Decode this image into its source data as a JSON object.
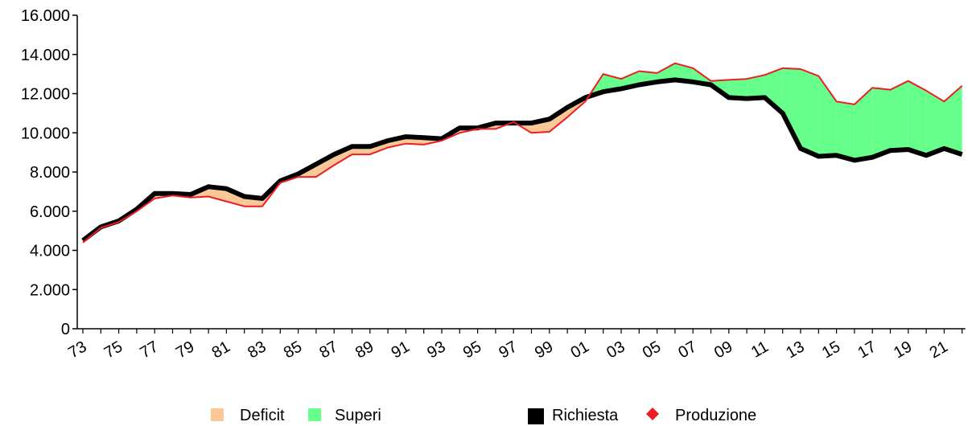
{
  "chart_data": {
    "type": "area",
    "title": "",
    "xlabel": "",
    "ylabel": "",
    "ylim": [
      0,
      16000
    ],
    "yticks": [
      0,
      2000,
      4000,
      6000,
      8000,
      10000,
      12000,
      14000,
      16000
    ],
    "ytick_labels": [
      "0",
      "2.000",
      "4.000",
      "6.000",
      "8.000",
      "10.000",
      "12.000",
      "14.000",
      "16.000"
    ],
    "xtick_labels": [
      "73",
      "75",
      "77",
      "79",
      "81",
      "83",
      "85",
      "87",
      "89",
      "91",
      "93",
      "95",
      "97",
      "99",
      "01",
      "03",
      "05",
      "07",
      "09",
      "11",
      "13",
      "15",
      "17",
      "19",
      "21"
    ],
    "grid": false,
    "legend_position": "bottom",
    "x": [
      "1973",
      "1974",
      "1975",
      "1976",
      "1977",
      "1978",
      "1979",
      "1980",
      "1981",
      "1982",
      "1983",
      "1984",
      "1985",
      "1986",
      "1987",
      "1988",
      "1989",
      "1990",
      "1991",
      "1992",
      "1993",
      "1994",
      "1995",
      "1996",
      "1997",
      "1998",
      "1999",
      "2000",
      "2001",
      "2002",
      "2003",
      "2004",
      "2005",
      "2006",
      "2007",
      "2008",
      "2009",
      "2010",
      "2011",
      "2012",
      "2013",
      "2014",
      "2015",
      "2016",
      "2017",
      "2018",
      "2019",
      "2020",
      "2021",
      "2022"
    ],
    "series": [
      {
        "name": "Richiesta",
        "color": "#000000",
        "values": [
          4500,
          5200,
          5500,
          6100,
          6900,
          6900,
          6850,
          7250,
          7150,
          6750,
          6650,
          7550,
          7900,
          8400,
          8900,
          9300,
          9300,
          9600,
          9800,
          9750,
          9700,
          10250,
          10250,
          10500,
          10500,
          10500,
          10700,
          11300,
          11800,
          12100,
          12250,
          12450,
          12600,
          12700,
          12600,
          12450,
          11800,
          11750,
          11800,
          11000,
          9200,
          8800,
          8850,
          8600,
          8750,
          9100,
          9150,
          8850,
          9200,
          8900
        ]
      },
      {
        "name": "Produzione",
        "color": "#ee1c24",
        "values": [
          4400,
          5150,
          5450,
          6000,
          6650,
          6800,
          6700,
          6750,
          6500,
          6250,
          6250,
          7450,
          7750,
          7750,
          8350,
          8900,
          8900,
          9250,
          9450,
          9400,
          9600,
          10000,
          10200,
          10200,
          10550,
          10000,
          10050,
          10800,
          11600,
          13000,
          12750,
          13150,
          13050,
          13550,
          13300,
          12650,
          12700,
          12750,
          12950,
          13300,
          13250,
          12900,
          11600,
          11450,
          12300,
          12200,
          12650,
          12150,
          11600,
          12400
        ]
      }
    ],
    "fill_series": [
      {
        "name": "Deficit",
        "color": "#fac896"
      },
      {
        "name": "Superi",
        "color": "#66ff8c"
      }
    ]
  }
}
